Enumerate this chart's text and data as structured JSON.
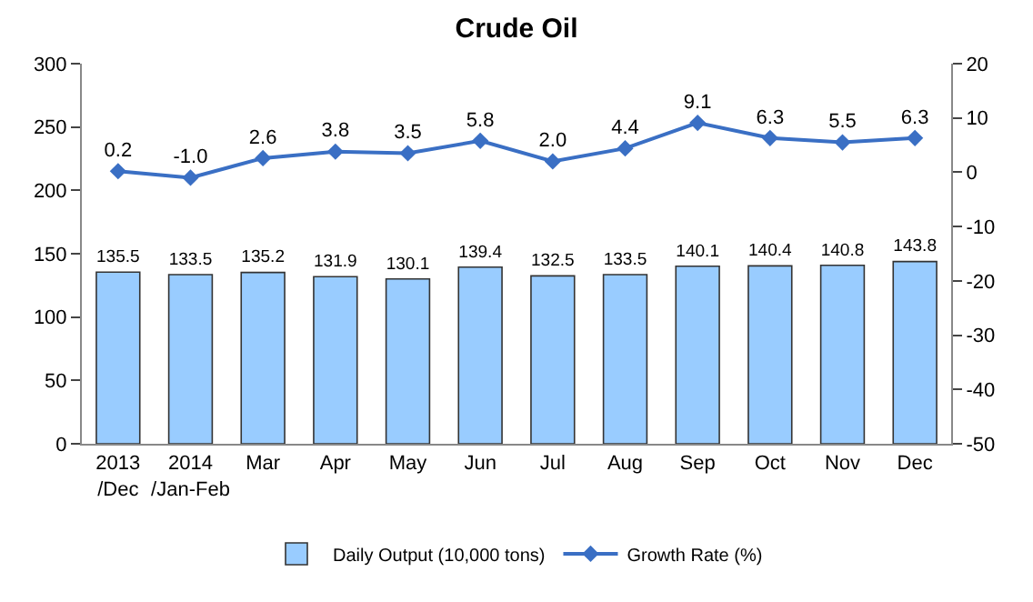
{
  "chart_data": {
    "type": "bar",
    "title": "Crude Oil",
    "categories": [
      "2013\n/Dec",
      "2014\n/Jan-Feb",
      "Mar",
      "Apr",
      "May",
      "Jun",
      "Jul",
      "Aug",
      "Sep",
      "Oct",
      "Nov",
      "Dec"
    ],
    "series": [
      {
        "name": "Daily Output (10,000 tons)",
        "color": "#99ccff",
        "values": [
          135.5,
          133.5,
          135.2,
          131.9,
          130.1,
          139.4,
          132.5,
          133.5,
          140.1,
          140.4,
          140.8,
          143.8
        ],
        "value_labels": [
          "135.5",
          "133.5",
          "135.2",
          "131.9",
          "130.1",
          "139.4",
          "132.5",
          "133.5",
          "140.1",
          "140.4",
          "140.8",
          "143.8"
        ]
      },
      {
        "name": "Growth Rate (%)",
        "type": "line",
        "axis": "y2",
        "color": "#3a6fc4",
        "marker": "diamond",
        "values": [
          0.2,
          -1.0,
          2.6,
          3.8,
          3.5,
          5.8,
          2.0,
          4.4,
          9.1,
          6.3,
          5.5,
          6.3
        ],
        "value_labels": [
          "0.2",
          "-1.0",
          "2.6",
          "3.8",
          "3.5",
          "5.8",
          "2.0",
          "4.4",
          "9.1",
          "6.3",
          "5.5",
          "6.3"
        ]
      }
    ],
    "ylim": [
      0,
      300
    ],
    "yticks": [
      0,
      50,
      100,
      150,
      200,
      250,
      300
    ],
    "y2lim": [
      -50,
      20
    ],
    "y2ticks": [
      -50,
      -40,
      -30,
      -20,
      -10,
      0,
      10,
      20
    ],
    "legend": "bottom"
  }
}
